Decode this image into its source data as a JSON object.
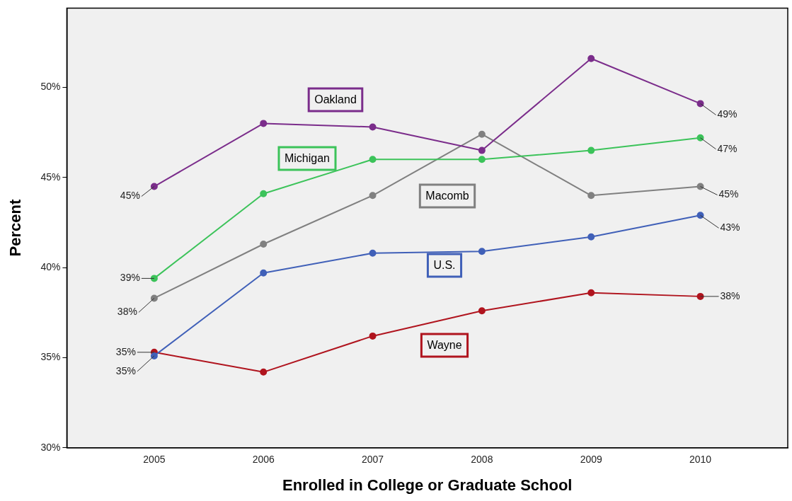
{
  "chart_data": {
    "type": "line",
    "xlabel": "Enrolled in College or Graduate School",
    "ylabel": "Percent",
    "x": [
      2005,
      2006,
      2007,
      2008,
      2009,
      2010
    ],
    "xlim": [
      2004.2,
      2010.8
    ],
    "xticks": [
      2005,
      2006,
      2007,
      2008,
      2009,
      2010
    ],
    "ylim": [
      30,
      54.4
    ],
    "yticks": [
      {
        "value": 30,
        "label": "30%"
      },
      {
        "value": 35,
        "label": "35%"
      },
      {
        "value": 40,
        "label": "40%"
      },
      {
        "value": 45,
        "label": "45%"
      },
      {
        "value": 50,
        "label": "50%"
      }
    ],
    "grid": false,
    "legend": false,
    "marker": "circle",
    "line_style": "solid",
    "series": [
      {
        "name": "Oakland",
        "color": "#7b2d8b",
        "values": [
          44.5,
          48.0,
          47.8,
          46.5,
          51.6,
          49.1
        ],
        "value_labels": [
          "45%",
          null,
          null,
          null,
          null,
          "49%"
        ]
      },
      {
        "name": "Michigan",
        "color": "#3cc35a",
        "values": [
          39.4,
          44.1,
          46.0,
          46.0,
          46.5,
          47.2
        ],
        "value_labels": [
          "39%",
          null,
          null,
          null,
          null,
          "47%"
        ]
      },
      {
        "name": "Macomb",
        "color": "#808080",
        "values": [
          38.3,
          41.3,
          44.0,
          47.4,
          44.0,
          44.5
        ],
        "value_labels": [
          "38%",
          null,
          null,
          null,
          null,
          "45%"
        ]
      },
      {
        "name": "U.S.",
        "color": "#4060b8",
        "values": [
          35.1,
          39.7,
          40.8,
          40.9,
          41.7,
          42.9
        ],
        "value_labels": [
          "35%",
          null,
          null,
          null,
          null,
          "43%"
        ]
      },
      {
        "name": "Wayne",
        "color": "#b0141e",
        "values": [
          35.3,
          34.2,
          36.2,
          37.6,
          38.6,
          38.4
        ],
        "value_labels": [
          "35%",
          null,
          null,
          null,
          null,
          "38%"
        ]
      }
    ]
  }
}
